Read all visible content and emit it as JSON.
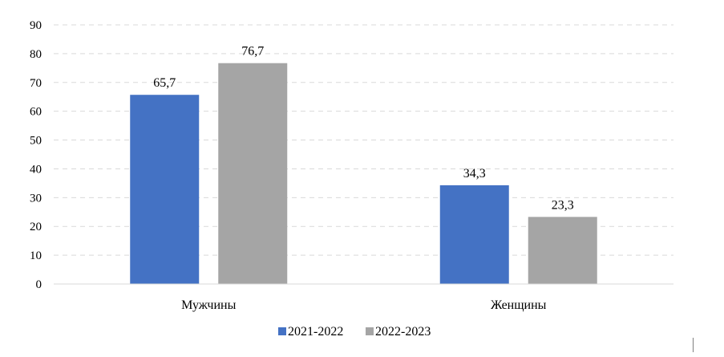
{
  "chart_data": {
    "type": "bar",
    "title": "",
    "xlabel": "",
    "ylabel": "",
    "categories": [
      "Мужчины",
      "Женщины"
    ],
    "series": [
      {
        "name": "2021-2022",
        "values": [
          65.7,
          34.3
        ],
        "labels": [
          "65,7",
          "34,3"
        ],
        "color": "#4472C4"
      },
      {
        "name": "2022-2023",
        "values": [
          76.7,
          23.3
        ],
        "labels": [
          "76,7",
          "23,3"
        ],
        "color": "#A5A5A5"
      }
    ],
    "ylim": [
      0,
      90
    ],
    "yticks": [
      0,
      10,
      20,
      30,
      40,
      50,
      60,
      70,
      80,
      90
    ],
    "grid": true,
    "legend": "bottom-center"
  }
}
